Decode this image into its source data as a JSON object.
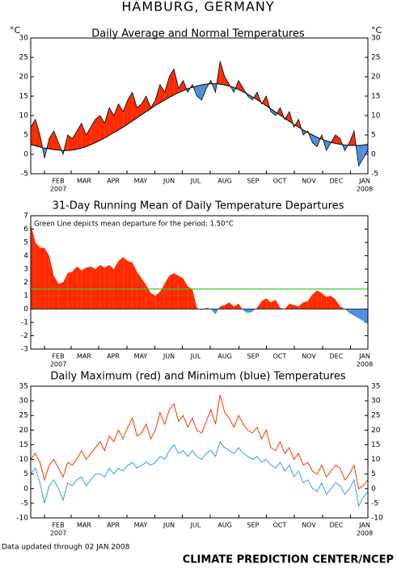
{
  "title": "HAMBURG, GERMANY",
  "chart_data": [
    {
      "type": "band",
      "title": "Daily Average and Normal Temperatures",
      "y_unit": "°C",
      "right_axis": true,
      "fill_above": "#ff2a00",
      "fill_below": "#4a8fe0",
      "ylim": [
        -5,
        30
      ],
      "yticks": [
        -5,
        0,
        5,
        10,
        15,
        20,
        25,
        30
      ],
      "x_labels": [
        "FEB",
        "MAR",
        "APR",
        "MAY",
        "JUN",
        "JUL",
        "AUG",
        "SEP",
        "OCT",
        "NOV",
        "DEC",
        "JAN"
      ],
      "x_year_labels": [
        "2007",
        "2008"
      ],
      "series": [
        {
          "color": "#000000",
          "values": [
            7,
            9,
            5,
            -1,
            4,
            6,
            3,
            0,
            5,
            4,
            6,
            8,
            5,
            7,
            9,
            10,
            8,
            12,
            10,
            13,
            11,
            14,
            16,
            12,
            13,
            15,
            12,
            14,
            18,
            16,
            20,
            22,
            17,
            19,
            16,
            18,
            15,
            14,
            17,
            19,
            16,
            24,
            20,
            18,
            16,
            19,
            17,
            15,
            14,
            16,
            13,
            15,
            11,
            10,
            12,
            9,
            11,
            7,
            9,
            5,
            6,
            3,
            2,
            5,
            1,
            3,
            5,
            4,
            1,
            3,
            6,
            -3,
            -1,
            1
          ]
        },
        {
          "color": "#000000",
          "values": [
            2.5,
            2.2,
            1.9,
            1.6,
            1.4,
            1.2,
            1.1,
            1.0,
            1.0,
            1.1,
            1.3,
            1.6,
            2.0,
            2.5,
            3.0,
            3.6,
            4.2,
            4.9,
            5.6,
            6.3,
            7.0,
            7.8,
            8.6,
            9.4,
            10.2,
            11.0,
            11.8,
            12.6,
            13.3,
            14.0,
            14.7,
            15.3,
            15.9,
            16.4,
            16.9,
            17.3,
            17.6,
            17.9,
            18.1,
            18.2,
            18.2,
            18.1,
            17.9,
            17.6,
            17.2,
            16.7,
            16.1,
            15.5,
            14.8,
            14.1,
            13.3,
            12.5,
            11.7,
            10.9,
            10.1,
            9.3,
            8.5,
            7.7,
            7.0,
            6.3,
            5.6,
            5.0,
            4.4,
            3.9,
            3.5,
            3.1,
            2.8,
            2.6,
            2.4,
            2.3,
            2.3,
            2.3,
            2.4,
            2.6
          ]
        }
      ]
    },
    {
      "type": "area",
      "title": "31-Day Running Mean of Daily Temperature Departures",
      "annotation": "Green Line depicts mean departure for the period: 1.50°C",
      "mean_line": {
        "value": 1.5,
        "color": "#33cc33"
      },
      "fill_above": "#ff2a00",
      "fill_below": "#4a8fe0",
      "ylim": [
        -3,
        7
      ],
      "yticks": [
        -3,
        -2,
        -1,
        0,
        1,
        2,
        3,
        4,
        5,
        6,
        7
      ],
      "x_labels": [
        "FEB",
        "MAR",
        "APR",
        "MAY",
        "JUN",
        "JUL",
        "AUG",
        "SEP",
        "OCT",
        "NOV",
        "DEC",
        "JAN"
      ],
      "x_year_labels": [
        "2007",
        "2008"
      ],
      "values": [
        6.4,
        5.0,
        4.6,
        4.6,
        4.0,
        2.5,
        1.9,
        2.0,
        2.7,
        2.8,
        3.2,
        2.9,
        3.1,
        3.2,
        3.0,
        3.3,
        3.1,
        3.3,
        3.0,
        3.6,
        3.9,
        3.6,
        3.5,
        2.8,
        2.3,
        1.8,
        1.2,
        1.0,
        1.3,
        1.9,
        2.5,
        2.7,
        2.5,
        2.3,
        1.7,
        1.5,
        0.1,
        -0.1,
        0.1,
        0.0,
        -0.4,
        0.2,
        0.3,
        0.5,
        0.2,
        0.4,
        -0.1,
        -0.3,
        -0.2,
        0.1,
        0.6,
        0.8,
        0.5,
        0.7,
        0.1,
        0.0,
        0.4,
        0.3,
        0.2,
        0.5,
        0.6,
        1.1,
        1.4,
        1.2,
        0.9,
        1.0,
        0.7,
        0.2,
        0.0,
        -0.3,
        -0.5,
        -0.7,
        -0.9,
        -1.1
      ]
    },
    {
      "type": "line",
      "title": "Daily Maximum (red) and Minimum (blue) Temperatures",
      "right_axis": true,
      "ylim": [
        -10,
        35
      ],
      "yticks": [
        -10,
        -5,
        0,
        5,
        10,
        15,
        20,
        25,
        30,
        35
      ],
      "x_labels": [
        "FEB",
        "MAR",
        "APR",
        "MAY",
        "JUN",
        "JUL",
        "AUG",
        "SEP",
        "OCT",
        "NOV",
        "DEC",
        "JAN"
      ],
      "x_year_labels": [
        "2007",
        "2008"
      ],
      "series": [
        {
          "color": "#ff3300",
          "values": [
            10,
            12,
            9,
            3,
            8,
            10,
            7,
            4,
            9,
            8,
            10,
            13,
            10,
            12,
            14,
            16,
            13,
            18,
            16,
            20,
            17,
            21,
            24,
            18,
            19,
            22,
            17,
            20,
            26,
            22,
            27,
            29,
            23,
            25,
            21,
            24,
            20,
            19,
            23,
            27,
            22,
            32,
            26,
            24,
            21,
            25,
            22,
            20,
            19,
            21,
            17,
            20,
            14,
            13,
            16,
            12,
            14,
            10,
            12,
            8,
            9,
            6,
            5,
            8,
            4,
            6,
            8,
            7,
            3,
            5,
            8,
            0,
            1,
            3
          ]
        },
        {
          "color": "#3399ff",
          "values": [
            5,
            7,
            2,
            -5,
            1,
            3,
            0,
            -4,
            2,
            1,
            3,
            4,
            1,
            3,
            5,
            5,
            4,
            7,
            5,
            7,
            6,
            8,
            9,
            7,
            8,
            9,
            8,
            9,
            11,
            10,
            13,
            15,
            12,
            13,
            11,
            13,
            11,
            10,
            12,
            13,
            11,
            16,
            14,
            13,
            12,
            14,
            12,
            11,
            10,
            11,
            9,
            10,
            8,
            7,
            9,
            6,
            8,
            4,
            6,
            2,
            3,
            0,
            -1,
            2,
            -2,
            0,
            2,
            1,
            -2,
            0,
            3,
            -6,
            -3,
            -1
          ]
        }
      ]
    }
  ],
  "footer": {
    "updated": "Data updated through 02 JAN 2008",
    "credit": "CLIMATE PREDICTION CENTER/NCEP"
  }
}
